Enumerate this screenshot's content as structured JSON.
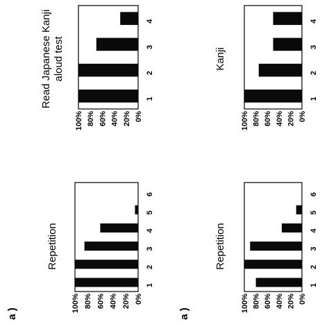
{
  "panel_labels": [
    "a )",
    "a )"
  ],
  "chart_data": [
    {
      "type": "bar",
      "title": "Repetition",
      "categories": [
        "1",
        "2",
        "3",
        "4",
        "5",
        "6"
      ],
      "values": [
        100,
        100,
        85,
        60,
        5,
        0
      ],
      "ylim": [
        0,
        100
      ],
      "yticks": [
        "0%",
        "20%",
        "40%",
        "60%",
        "80%",
        "100%"
      ]
    },
    {
      "type": "bar",
      "title": "Read Japanese Kanji aloud test",
      "title_lines": [
        "Read Japanese Kanji",
        "aloud test"
      ],
      "categories": [
        "1",
        "2",
        "3",
        "4"
      ],
      "values": [
        100,
        100,
        70,
        30
      ],
      "ylim": [
        0,
        100
      ],
      "yticks": [
        "0%",
        "20%",
        "40%",
        "60%",
        "80%",
        "100%"
      ]
    },
    {
      "type": "bar",
      "title": "Repetition",
      "categories": [
        "1",
        "2",
        "3",
        "4",
        "5",
        "6"
      ],
      "values": [
        80,
        100,
        90,
        35,
        10,
        0
      ],
      "ylim": [
        0,
        100
      ],
      "yticks": [
        "0%",
        "20%",
        "40%",
        "60%",
        "80%",
        "100%"
      ]
    },
    {
      "type": "bar",
      "title": "Kanji",
      "categories": [
        "1",
        "2",
        "3",
        "4"
      ],
      "values": [
        100,
        75,
        50,
        50
      ],
      "ylim": [
        0,
        100
      ],
      "yticks": [
        "0%",
        "20%",
        "40%",
        "60%",
        "80%",
        "100%"
      ]
    }
  ]
}
